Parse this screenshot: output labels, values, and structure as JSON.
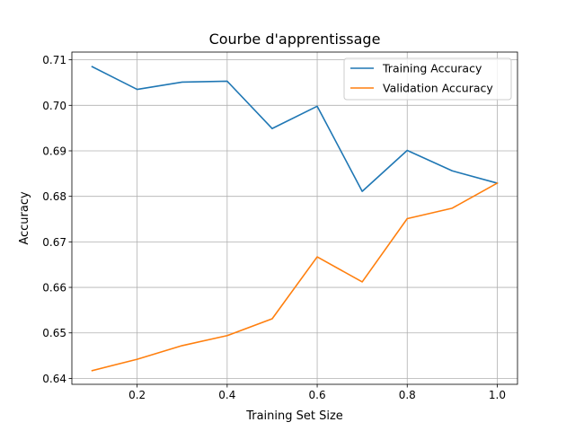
{
  "chart_data": {
    "type": "line",
    "title": "Courbe d'apprentissage",
    "xlabel": "Training Set Size",
    "ylabel": "Accuracy",
    "x": [
      0.1,
      0.2,
      0.3,
      0.4,
      0.5,
      0.6,
      0.7,
      0.8,
      0.9,
      1.0
    ],
    "series": [
      {
        "name": "Training Accuracy",
        "color": "#1f77b4",
        "values": [
          0.7085,
          0.7035,
          0.7051,
          0.7053,
          0.6949,
          0.6998,
          0.6811,
          0.6901,
          0.6856,
          0.6829
        ]
      },
      {
        "name": "Validation Accuracy",
        "color": "#ff7f0e",
        "values": [
          0.6417,
          0.6442,
          0.6472,
          0.6494,
          0.6531,
          0.6667,
          0.6612,
          0.6751,
          0.6774,
          0.6829
        ]
      }
    ],
    "xlim": [
      0.055,
      1.045
    ],
    "ylim": [
      0.6387,
      0.7117
    ],
    "xticks": [
      0.2,
      0.4,
      0.6,
      0.8,
      1.0
    ],
    "xtick_labels": [
      "0.2",
      "0.4",
      "0.6",
      "0.8",
      "1.0"
    ],
    "yticks": [
      0.64,
      0.65,
      0.66,
      0.67,
      0.68,
      0.69,
      0.7,
      0.71
    ],
    "ytick_labels": [
      "0.64",
      "0.65",
      "0.66",
      "0.67",
      "0.68",
      "0.69",
      "0.70",
      "0.71"
    ],
    "grid": true,
    "legend_position": "top-right"
  }
}
